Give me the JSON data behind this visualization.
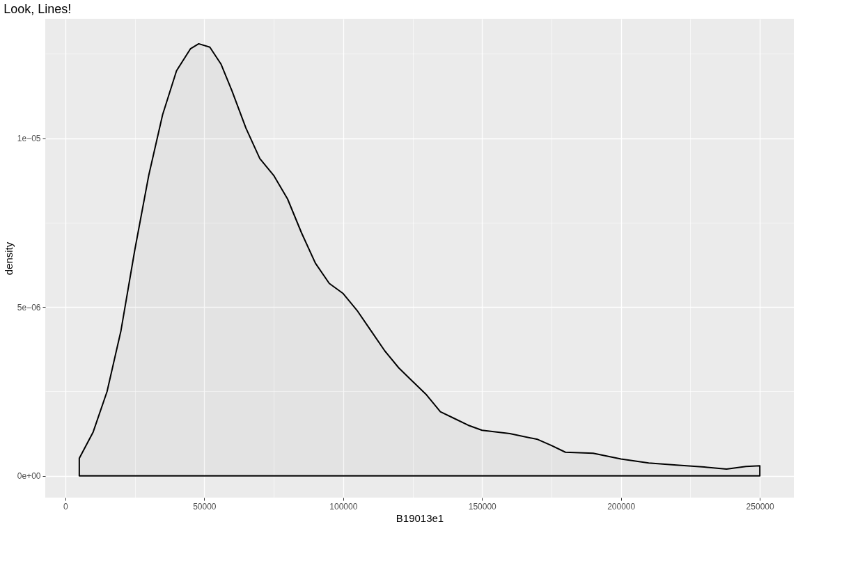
{
  "chart_data": {
    "type": "area",
    "title": "Look, Lines!",
    "xlabel": "B19013e1",
    "ylabel": "density",
    "x": [
      5000,
      10000,
      15000,
      20000,
      25000,
      30000,
      35000,
      40000,
      45000,
      48000,
      52000,
      56000,
      60000,
      65000,
      70000,
      75000,
      80000,
      85000,
      90000,
      95000,
      100000,
      105000,
      110000,
      115000,
      120000,
      125000,
      130000,
      135000,
      140000,
      145000,
      150000,
      160000,
      170000,
      175000,
      180000,
      190000,
      200000,
      210000,
      220000,
      230000,
      238000,
      245000,
      250000
    ],
    "series": [
      {
        "color": "#000000",
        "values": [
          5.2e-07,
          1.3e-06,
          2.5e-06,
          4.3e-06,
          6.7e-06,
          8.9e-06,
          1.07e-05,
          1.2e-05,
          1.265e-05,
          1.28e-05,
          1.27e-05,
          1.22e-05,
          1.14e-05,
          1.03e-05,
          9.4e-06,
          8.9e-06,
          8.2e-06,
          7.2e-06,
          6.3e-06,
          5.7e-06,
          5.4e-06,
          4.9e-06,
          4.3e-06,
          3.7e-06,
          3.2e-06,
          2.8e-06,
          2.4e-06,
          1.9e-06,
          1.7e-06,
          1.5e-06,
          1.35e-06,
          1.25e-06,
          1.08e-06,
          9e-07,
          7e-07,
          6.7e-07,
          5e-07,
          3.8e-07,
          3.2e-07,
          2.6e-07,
          2e-07,
          2.8e-07,
          3e-07
        ]
      }
    ],
    "xlim": [
      -7250,
      262250
    ],
    "ylim": [
      -6.45e-07,
      1.354e-05
    ],
    "xticks": [
      0,
      {
        "value": 25000,
        "label": null
      },
      50000,
      {
        "value": 75000,
        "label": null
      },
      100000,
      {
        "value": 125000,
        "label": null
      },
      150000,
      {
        "value": 175000,
        "label": null
      },
      200000,
      {
        "value": 225000,
        "label": null
      },
      250000
    ],
    "yticks": [
      {
        "value": 0,
        "label": "0e+00"
      },
      {
        "value": 2.5e-06,
        "label": null
      },
      {
        "value": 5e-06,
        "label": "5e−06"
      },
      {
        "value": 7.5e-06,
        "label": null
      },
      {
        "value": 1e-05,
        "label": "1e−05"
      },
      {
        "value": 1.25e-05,
        "label": null
      }
    ],
    "grid": true
  }
}
